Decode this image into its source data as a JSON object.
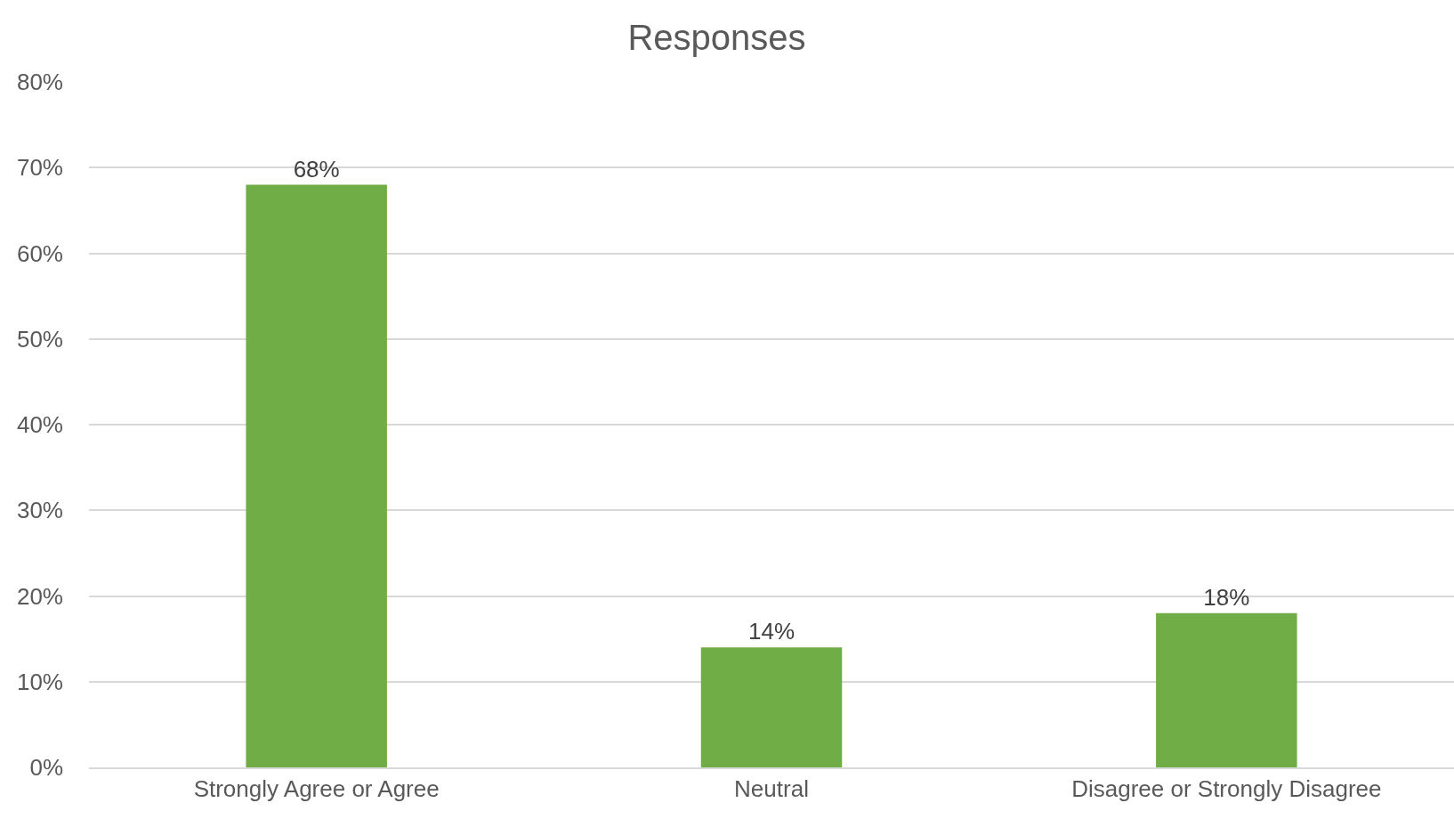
{
  "chart_data": {
    "type": "bar",
    "title": "Responses",
    "categories": [
      "Strongly Agree or Agree",
      "Neutral",
      "Disagree or Strongly Disagree"
    ],
    "values": [
      68,
      14,
      18
    ],
    "value_labels": [
      "68%",
      "14%",
      "18%"
    ],
    "color": "#70ad47",
    "ylim": [
      0,
      80
    ],
    "yticks": [
      {
        "value": 0,
        "label": "0%"
      },
      {
        "value": 10,
        "label": "10%"
      },
      {
        "value": 20,
        "label": "20%"
      },
      {
        "value": 30,
        "label": "30%"
      },
      {
        "value": 40,
        "label": "40%"
      },
      {
        "value": 50,
        "label": "50%"
      },
      {
        "value": 60,
        "label": "60%"
      },
      {
        "value": 70,
        "label": "70%"
      },
      {
        "value": 80,
        "label": "80%"
      }
    ],
    "grid": "y"
  }
}
